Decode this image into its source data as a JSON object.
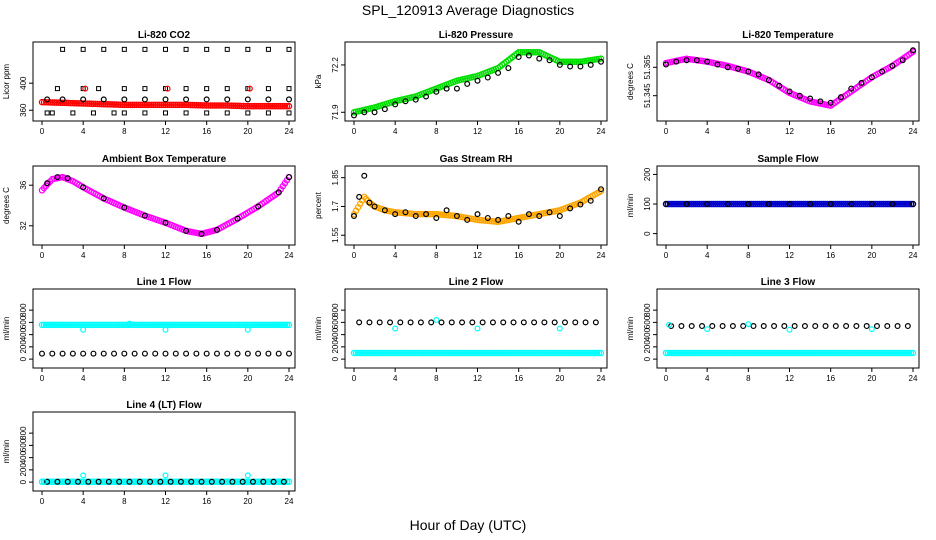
{
  "figure": {
    "title": "SPL_120913  Average Diagnostics",
    "xlabel": "Hour of Day (UTC)"
  },
  "colors": {
    "black": "#000000",
    "red": "#ff0000",
    "green": "#00dd00",
    "magenta": "#ff00ff",
    "orange": "#ffa500",
    "cyan": "#00ffff",
    "blue": "#0000cc"
  },
  "chart_data": [
    {
      "type": "scatter",
      "title": "Li-820 CO2",
      "ylabel": "Licor ppm",
      "xlim": [
        0,
        24
      ],
      "xticks": [
        0,
        4,
        8,
        12,
        16,
        20,
        24
      ],
      "ylim": [
        350,
        455
      ],
      "yticks": [
        360,
        400
      ],
      "series": [
        {
          "color": "red",
          "style": "band",
          "x": [
            0,
            2,
            4,
            6,
            8,
            10,
            12,
            14,
            16,
            18,
            20,
            22,
            24
          ],
          "y": [
            372,
            371,
            370,
            369,
            368,
            368,
            368,
            368,
            367,
            367,
            366,
            366,
            366
          ]
        },
        {
          "color": "black",
          "style": "square",
          "x": [
            0.5,
            2,
            4,
            6,
            8,
            10,
            12,
            14,
            16,
            18,
            20,
            22,
            24
          ],
          "y": [
            356,
            450,
            450,
            450,
            450,
            450,
            450,
            450,
            450,
            450,
            450,
            450,
            450
          ]
        },
        {
          "color": "black",
          "style": "square",
          "x": [
            1.5,
            4,
            5.5,
            8,
            10,
            12,
            14,
            16,
            18,
            20,
            22,
            24
          ],
          "y": [
            392,
            392,
            392,
            392,
            392,
            392,
            392,
            392,
            392,
            392,
            392,
            392
          ]
        },
        {
          "color": "black",
          "style": "square",
          "x": [
            1,
            3,
            5,
            7,
            8,
            10,
            12,
            14,
            16,
            18,
            20,
            22,
            24
          ],
          "y": [
            356,
            356,
            356,
            356,
            356,
            356,
            356,
            356,
            356,
            356,
            356,
            356,
            356
          ]
        },
        {
          "color": "black",
          "style": "circle",
          "x": [
            0.5,
            2,
            4,
            6,
            8,
            10,
            12,
            14,
            16,
            18,
            20,
            22,
            24
          ],
          "y": [
            376,
            376,
            376,
            376,
            376,
            376,
            376,
            376,
            376,
            376,
            376,
            376,
            376
          ]
        },
        {
          "color": "red",
          "style": "circle",
          "x": [
            4.2,
            12.2,
            20.2
          ],
          "y": [
            392,
            392,
            392
          ]
        }
      ]
    },
    {
      "type": "scatter",
      "title": "Li-820 Pressure",
      "ylabel": "kPa",
      "xlim": [
        0,
        24
      ],
      "xticks": [
        0,
        4,
        8,
        12,
        16,
        20,
        24
      ],
      "ylim": [
        71.87,
        72.32
      ],
      "yticks": [
        71.9,
        72.2
      ],
      "series": [
        {
          "color": "green",
          "style": "band",
          "x": [
            0,
            2,
            4,
            6,
            8,
            10,
            12,
            14,
            16,
            18,
            20,
            22,
            24
          ],
          "y": [
            71.9,
            71.93,
            71.97,
            72.0,
            72.05,
            72.1,
            72.13,
            72.18,
            72.28,
            72.28,
            72.22,
            72.22,
            72.24
          ]
        },
        {
          "color": "black",
          "style": "circle",
          "x": [
            0,
            1,
            2,
            3,
            4,
            5,
            6,
            7,
            8,
            9,
            10,
            11,
            12,
            13,
            14,
            15,
            16,
            17,
            18,
            19,
            20,
            21,
            22,
            23,
            24
          ],
          "y": [
            71.88,
            71.9,
            71.9,
            71.92,
            71.95,
            71.97,
            71.98,
            72.0,
            72.03,
            72.05,
            72.05,
            72.08,
            72.1,
            72.12,
            72.15,
            72.18,
            72.25,
            72.26,
            72.24,
            72.23,
            72.2,
            72.19,
            72.19,
            72.2,
            72.22
          ]
        }
      ]
    },
    {
      "type": "scatter",
      "title": "Li-820 Temperature",
      "ylabel": "degrees C",
      "xlim": [
        0,
        24
      ],
      "xticks": [
        0,
        4,
        8,
        12,
        16,
        20,
        24
      ],
      "ylim": [
        51.33,
        51.38
      ],
      "yticks": [
        51.345,
        51.365
      ],
      "series": [
        {
          "color": "magenta",
          "style": "band",
          "x": [
            0,
            2,
            4,
            6,
            8,
            10,
            12,
            14,
            16,
            18,
            20,
            22,
            24
          ],
          "y": [
            51.368,
            51.371,
            51.369,
            51.366,
            51.362,
            51.356,
            51.347,
            51.341,
            51.338,
            51.348,
            51.358,
            51.366,
            51.376
          ]
        },
        {
          "color": "black",
          "style": "circle",
          "x": [
            0,
            1,
            2,
            3,
            4,
            5,
            6,
            7,
            8,
            9,
            10,
            11,
            12,
            13,
            14,
            15,
            16,
            17,
            18,
            19,
            20,
            21,
            22,
            23,
            24
          ],
          "y": [
            51.367,
            51.369,
            51.37,
            51.37,
            51.369,
            51.367,
            51.365,
            51.364,
            51.362,
            51.36,
            51.356,
            51.352,
            51.348,
            51.345,
            51.343,
            51.341,
            51.34,
            51.344,
            51.35,
            51.354,
            51.358,
            51.362,
            51.366,
            51.37,
            51.377
          ]
        }
      ]
    },
    {
      "type": "scatter",
      "title": "Ambient Box Temperature",
      "ylabel": "degrees C",
      "xlim": [
        0,
        24
      ],
      "xticks": [
        0,
        4,
        8,
        12,
        16,
        20,
        24
      ],
      "ylim": [
        30.5,
        37.5
      ],
      "yticks": [
        32,
        36
      ],
      "series": [
        {
          "color": "magenta",
          "style": "band",
          "x": [
            0,
            1,
            2,
            3,
            4,
            6,
            8,
            10,
            12,
            14,
            15.5,
            17,
            19,
            21,
            23,
            24
          ],
          "y": [
            35.5,
            36.6,
            36.8,
            36.4,
            35.8,
            34.7,
            33.8,
            33.0,
            32.3,
            31.5,
            31.2,
            31.6,
            32.7,
            33.9,
            35.3,
            36.8
          ]
        },
        {
          "color": "black",
          "style": "circle",
          "x": [
            0.5,
            1.5,
            2.5,
            4,
            6,
            8,
            10,
            12,
            14,
            15.5,
            17,
            19,
            21,
            23,
            24
          ],
          "y": [
            36.2,
            36.8,
            36.7,
            35.8,
            34.7,
            33.8,
            33.0,
            32.3,
            31.5,
            31.2,
            31.6,
            32.7,
            33.9,
            35.3,
            36.8
          ]
        }
      ]
    },
    {
      "type": "scatter",
      "title": "Gas Stream RH",
      "ylabel": "percent",
      "xlim": [
        0,
        24
      ],
      "xticks": [
        0,
        4,
        8,
        12,
        16,
        20,
        24
      ],
      "ylim": [
        1.52,
        1.89
      ],
      "yticks": [
        1.55,
        1.7,
        1.85
      ],
      "series": [
        {
          "color": "orange",
          "style": "band",
          "x": [
            0,
            1,
            1.5,
            2,
            3,
            4,
            6,
            8,
            10,
            12,
            14,
            16,
            18,
            20,
            22,
            24
          ],
          "y": [
            1.66,
            1.75,
            1.72,
            1.7,
            1.68,
            1.67,
            1.66,
            1.66,
            1.65,
            1.63,
            1.62,
            1.64,
            1.66,
            1.68,
            1.72,
            1.78
          ]
        },
        {
          "color": "black",
          "style": "circle",
          "x": [
            0,
            0.5,
            1,
            1.5,
            2,
            3,
            4,
            5,
            6,
            7,
            8,
            9,
            10,
            11,
            12,
            13,
            14,
            15,
            16,
            17,
            18,
            19,
            20,
            21,
            22,
            23,
            24
          ],
          "y": [
            1.65,
            1.75,
            1.86,
            1.72,
            1.7,
            1.68,
            1.66,
            1.67,
            1.65,
            1.66,
            1.64,
            1.68,
            1.65,
            1.63,
            1.66,
            1.64,
            1.63,
            1.65,
            1.62,
            1.66,
            1.65,
            1.67,
            1.65,
            1.69,
            1.71,
            1.73,
            1.79
          ]
        }
      ]
    },
    {
      "type": "scatter",
      "title": "Sample Flow",
      "ylabel": "ml/min",
      "xlim": [
        0,
        24
      ],
      "xticks": [
        0,
        4,
        8,
        12,
        16,
        20,
        24
      ],
      "ylim": [
        -25,
        215
      ],
      "yticks": [
        0,
        100,
        200
      ],
      "series": [
        {
          "color": "blue",
          "style": "band",
          "x": [
            0,
            24
          ],
          "y": [
            100,
            100
          ]
        },
        {
          "color": "black",
          "style": "circle",
          "x": [
            0,
            2,
            4,
            6,
            8,
            10,
            12,
            14,
            16,
            18,
            20,
            22,
            24
          ],
          "y": [
            100,
            100,
            100,
            100,
            100,
            100,
            100,
            100,
            100,
            100,
            100,
            100,
            100
          ]
        }
      ]
    },
    {
      "type": "scatter",
      "title": "Line 1 Flow",
      "ylabel": "ml/min",
      "xlim": [
        0,
        24
      ],
      "xticks": [
        0,
        4,
        8,
        12,
        16,
        20,
        24
      ],
      "ylim": [
        -80,
        1080
      ],
      "yticks": [
        0,
        200,
        400,
        600,
        800
      ],
      "series": [
        {
          "color": "cyan",
          "style": "band",
          "x": [
            0,
            24
          ],
          "y": [
            560,
            560
          ]
        },
        {
          "color": "black",
          "style": "circle",
          "x": [
            0,
            1,
            2,
            3,
            4,
            5,
            6,
            7,
            8,
            9,
            10,
            11,
            12,
            13,
            14,
            15,
            16,
            17,
            18,
            19,
            20,
            21,
            22,
            23,
            24
          ],
          "y": [
            90,
            90,
            90,
            90,
            90,
            90,
            90,
            90,
            90,
            90,
            90,
            90,
            90,
            90,
            90,
            90,
            90,
            90,
            90,
            90,
            90,
            90,
            90,
            90,
            90
          ]
        },
        {
          "color": "cyan",
          "style": "circle",
          "x": [
            4,
            8.5,
            12,
            20
          ],
          "y": [
            480,
            580,
            480,
            480
          ]
        }
      ]
    },
    {
      "type": "scatter",
      "title": "Line 2 Flow",
      "ylabel": "ml/min",
      "xlim": [
        0,
        24
      ],
      "xticks": [
        0,
        4,
        8,
        12,
        16,
        20,
        24
      ],
      "ylim": [
        -80,
        1080
      ],
      "yticks": [
        0,
        200,
        400,
        600,
        800
      ],
      "series": [
        {
          "color": "cyan",
          "style": "band",
          "x": [
            0,
            24
          ],
          "y": [
            100,
            100
          ]
        },
        {
          "color": "black",
          "style": "circle",
          "x": [
            0.5,
            1.5,
            2.5,
            3.5,
            4.5,
            5.5,
            6.5,
            7.5,
            8.5,
            9.5,
            10.5,
            11.5,
            12.5,
            13.5,
            14.5,
            15.5,
            16.5,
            17.5,
            18.5,
            19.5,
            20.5,
            21.5,
            22.5,
            23.5
          ],
          "y": [
            600,
            600,
            600,
            600,
            600,
            600,
            600,
            600,
            600,
            600,
            600,
            600,
            600,
            600,
            600,
            600,
            600,
            600,
            600,
            600,
            600,
            600,
            600,
            600
          ]
        },
        {
          "color": "cyan",
          "style": "circle",
          "x": [
            4,
            8,
            12,
            20
          ],
          "y": [
            500,
            640,
            500,
            500
          ]
        }
      ]
    },
    {
      "type": "scatter",
      "title": "Line 3 Flow",
      "ylabel": "ml/min",
      "xlim": [
        0,
        24
      ],
      "xticks": [
        0,
        4,
        8,
        12,
        16,
        20,
        24
      ],
      "ylim": [
        -80,
        1080
      ],
      "yticks": [
        0,
        200,
        400,
        600,
        800
      ],
      "series": [
        {
          "color": "cyan",
          "style": "band",
          "x": [
            0,
            24
          ],
          "y": [
            100,
            100
          ]
        },
        {
          "color": "black",
          "style": "circle",
          "x": [
            0.5,
            1.5,
            2.5,
            3.5,
            4.5,
            5.5,
            6.5,
            7.5,
            8.5,
            9.5,
            10.5,
            11.5,
            12.5,
            13.5,
            14.5,
            15.5,
            16.5,
            17.5,
            18.5,
            19.5,
            20.5,
            21.5,
            22.5,
            23.5
          ],
          "y": [
            540,
            540,
            540,
            540,
            540,
            540,
            540,
            540,
            540,
            540,
            540,
            540,
            540,
            540,
            540,
            540,
            540,
            540,
            540,
            540,
            540,
            540,
            540,
            540
          ]
        },
        {
          "color": "cyan",
          "style": "circle",
          "x": [
            0.3,
            4,
            8,
            12,
            20
          ],
          "y": [
            560,
            490,
            570,
            480,
            490
          ]
        }
      ]
    },
    {
      "type": "scatter",
      "title": "Line 4 (LT) Flow",
      "ylabel": "ml/min",
      "xlim": [
        0,
        24
      ],
      "xticks": [
        0,
        4,
        8,
        12,
        16,
        20,
        24
      ],
      "ylim": [
        -80,
        1080
      ],
      "yticks": [
        0,
        200,
        400,
        600,
        800
      ],
      "series": [
        {
          "color": "cyan",
          "style": "band",
          "x": [
            0,
            24
          ],
          "y": [
            5,
            5
          ]
        },
        {
          "color": "black",
          "style": "circle",
          "x": [
            0.5,
            1.5,
            2.5,
            3.5,
            4.5,
            5.5,
            6.5,
            7.5,
            8.5,
            9.5,
            10.5,
            11.5,
            12.5,
            13.5,
            14.5,
            15.5,
            16.5,
            17.5,
            18.5,
            19.5,
            20.5,
            21.5,
            22.5,
            23.5
          ],
          "y": [
            5,
            5,
            5,
            5,
            5,
            5,
            5,
            5,
            5,
            5,
            5,
            5,
            5,
            5,
            5,
            5,
            5,
            5,
            5,
            5,
            5,
            5,
            5,
            5
          ]
        },
        {
          "color": "cyan",
          "style": "circle",
          "x": [
            0.2,
            4,
            12,
            20
          ],
          "y": [
            5,
            110,
            110,
            110
          ]
        }
      ]
    }
  ]
}
